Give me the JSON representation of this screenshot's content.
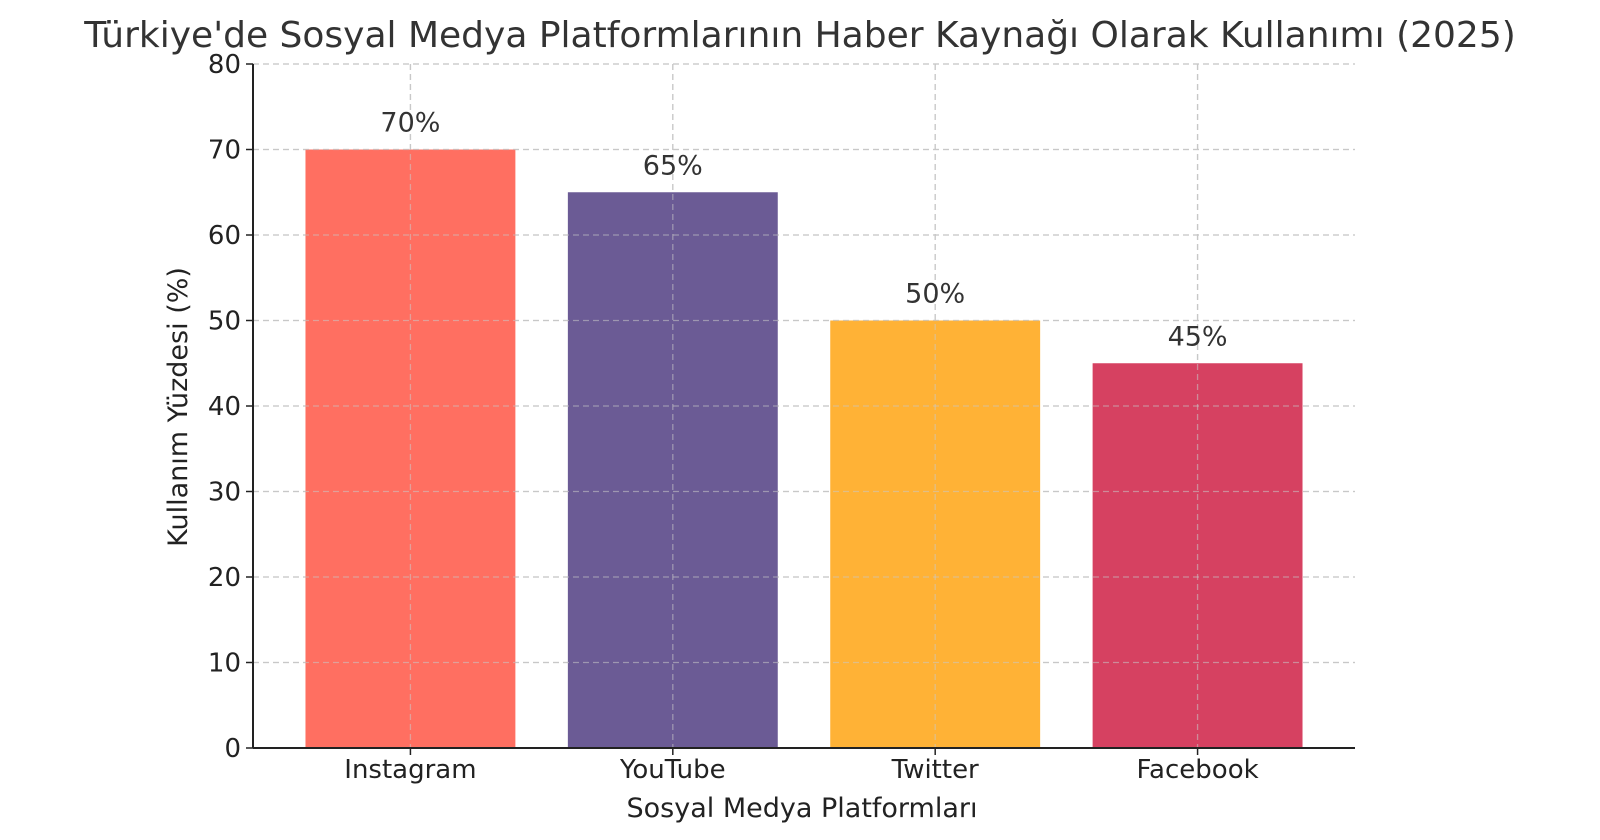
{
  "chart_data": {
    "type": "bar",
    "title": "Türkiye'de Sosyal Medya Platformlarının Haber Kaynağı Olarak Kullanımı (2025)",
    "xlabel": "Sosyal Medya Platformları",
    "ylabel": "Kullanım Yüzdesi (%)",
    "categories": [
      "Instagram",
      "YouTube",
      "Twitter",
      "Facebook"
    ],
    "values": [
      70,
      65,
      50,
      45
    ],
    "data_labels": [
      "70%",
      "65%",
      "50%",
      "45%"
    ],
    "colors": [
      "#FF6F61",
      "#6B5B95",
      "#FFB236",
      "#D64161"
    ],
    "ylim": [
      0,
      80
    ],
    "yticks": [
      0,
      10,
      20,
      30,
      40,
      50,
      60,
      70,
      80
    ],
    "grid": true,
    "legend": "none"
  }
}
